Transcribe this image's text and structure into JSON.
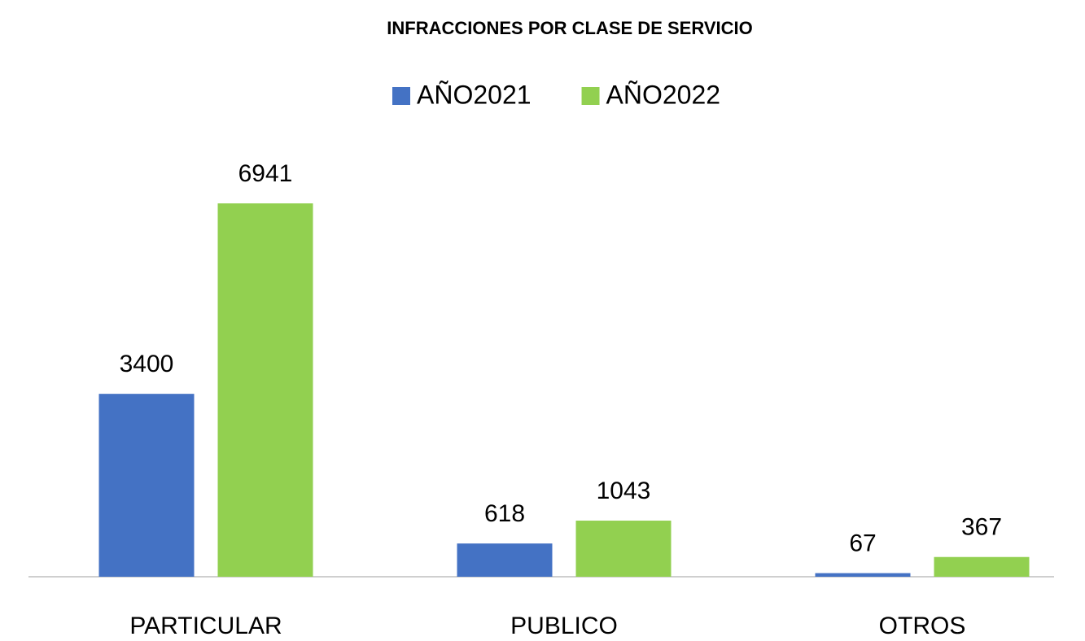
{
  "chart_data": {
    "type": "bar",
    "title": "INFRACCIONES POR CLASE DE SERVICIO",
    "categories": [
      "PARTICULAR",
      "PUBLICO",
      "OTROS"
    ],
    "series": [
      {
        "name": "AÑO2021",
        "color": "#4472c4",
        "values": [
          3400,
          618,
          67
        ]
      },
      {
        "name": "AÑO2022",
        "color": "#92d050",
        "values": [
          6941,
          1043,
          367
        ]
      }
    ],
    "legend": "top"
  }
}
